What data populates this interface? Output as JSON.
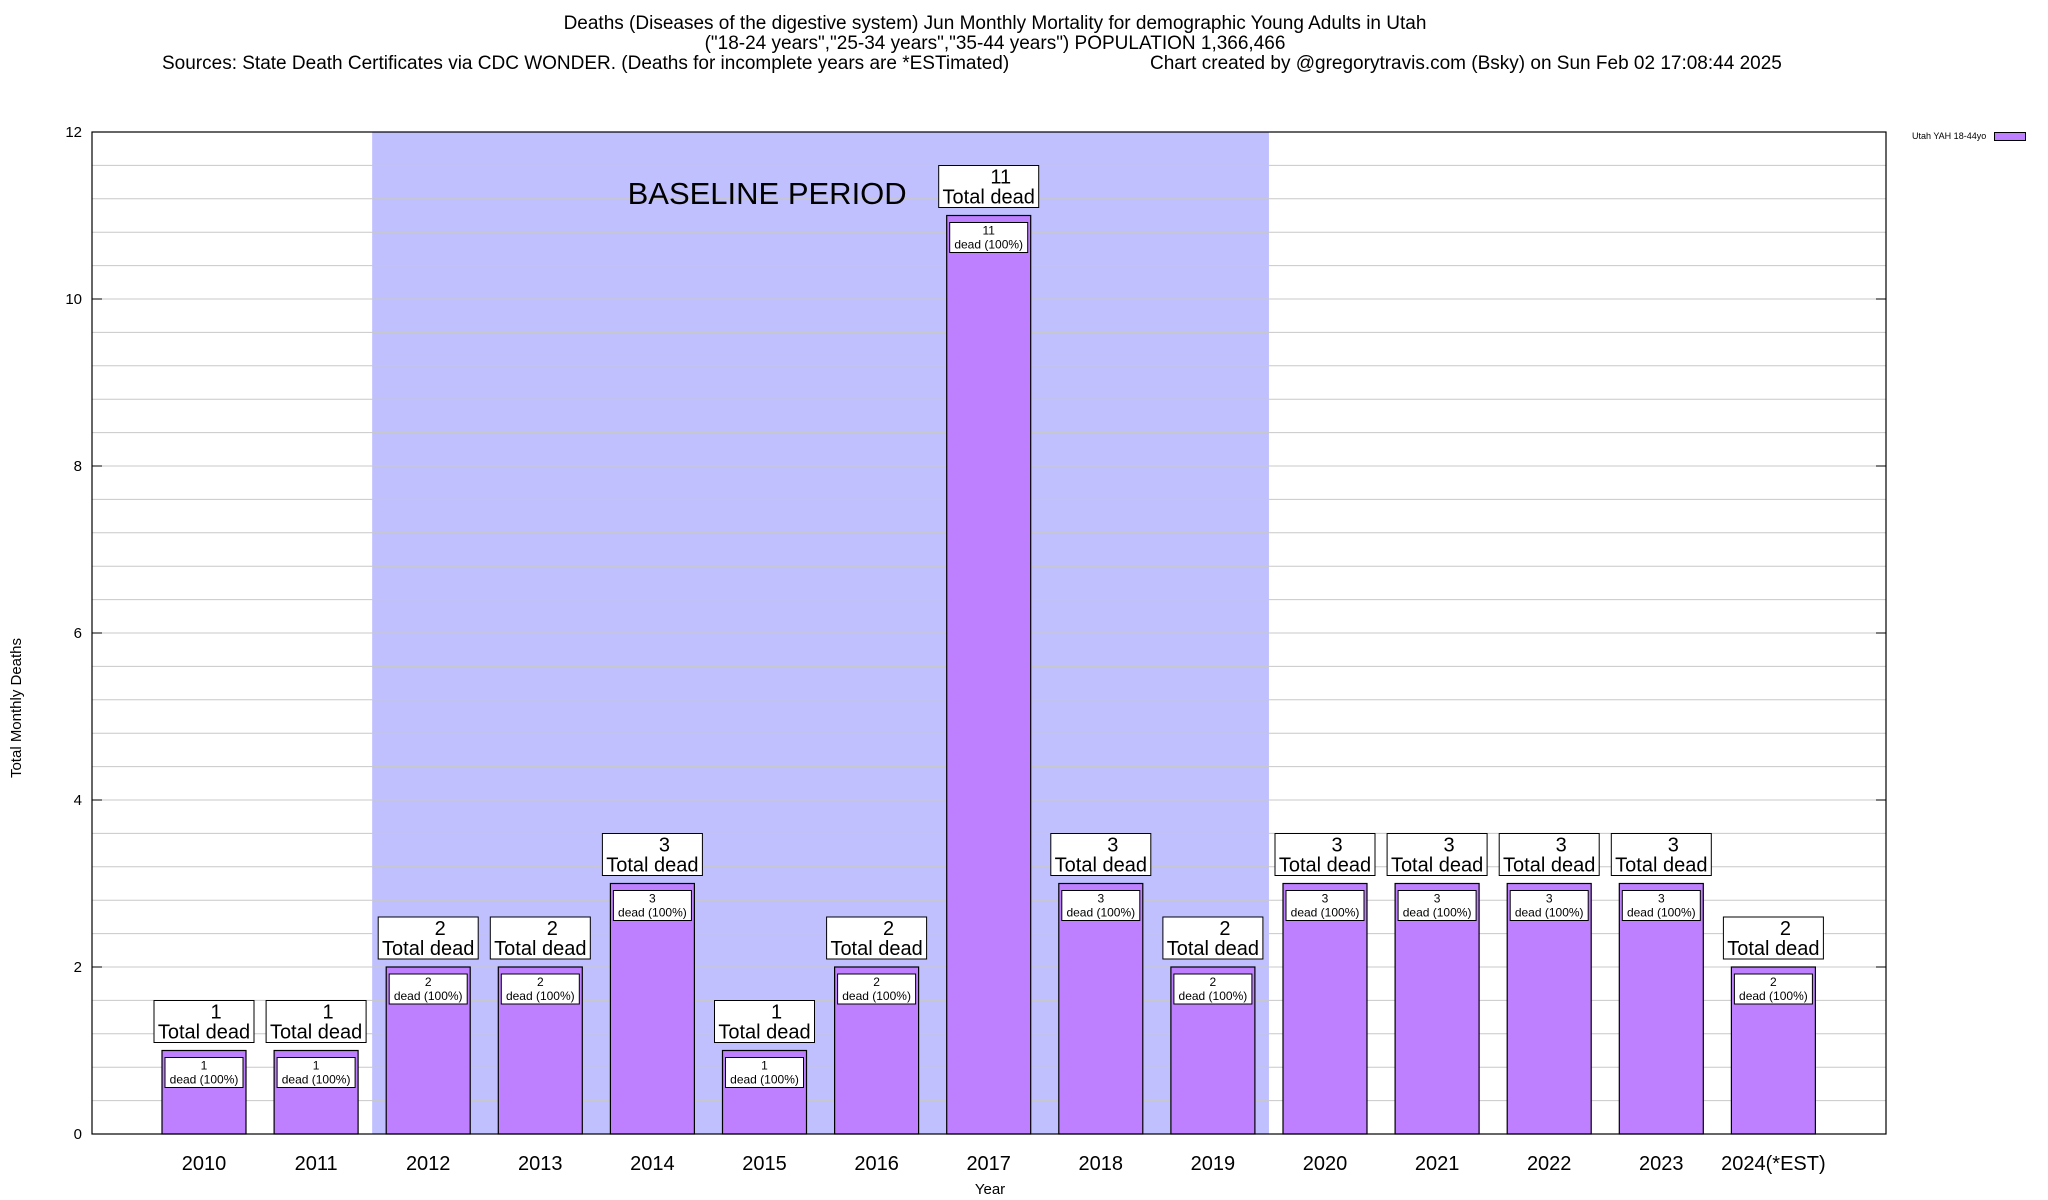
{
  "title_line1": "Deaths (Diseases of the digestive system) Jun Monthly Mortality for demographic Young Adults in Utah",
  "title_line2": "(\"18-24 years\",\"25-34 years\",\"35-44 years\") POPULATION 1,366,466",
  "title_line3a": "Sources: State Death Certificates via CDC WONDER. (Deaths for incomplete years are *ESTimated)",
  "title_line3b": "Chart created by @gregorytravis.com (Bsky) on Sun Feb 02 17:08:44 2025",
  "legend_label": "Utah YAH 18-44yo",
  "colors": {
    "bar": "#bf80ff",
    "baseline": "#c0c0ff"
  },
  "chart_data": {
    "type": "bar",
    "categories": [
      "2010",
      "2011",
      "2012",
      "2013",
      "2014",
      "2015",
      "2016",
      "2017",
      "2018",
      "2019",
      "2020",
      "2021",
      "2022",
      "2023",
      "2024(*EST)"
    ],
    "values": [
      1,
      1,
      2,
      2,
      3,
      1,
      2,
      11,
      3,
      2,
      3,
      3,
      3,
      3,
      2
    ],
    "total_label_suffix": "Total dead",
    "inner_label_suffix": "dead (100%)",
    "xlabel": "Year",
    "ylabel": "Total Monthly Deaths",
    "ylim": [
      0,
      12
    ],
    "yticks": [
      0,
      2,
      4,
      6,
      8,
      10,
      12
    ],
    "grid": true,
    "legend_position": "top-right",
    "baseline": {
      "label": "BASELINE PERIOD",
      "start": "2012",
      "end": "2019"
    }
  }
}
